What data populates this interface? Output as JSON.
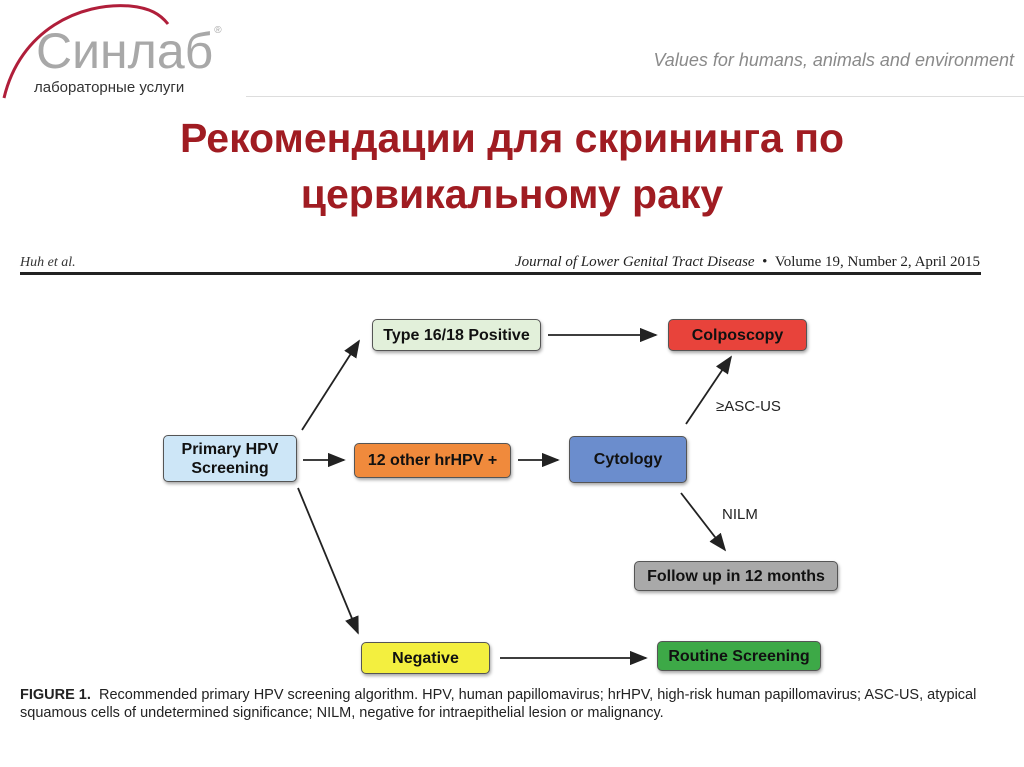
{
  "logo": {
    "name": "Синлаб",
    "registered": "®",
    "subtitle": "лабораторные услуги",
    "arc_color": "#b01e3a"
  },
  "tagline": "Values for humans, animals and environment",
  "title_lines": [
    "Рекомендации для скрининга по",
    "цервикальному раку"
  ],
  "figure_header": {
    "authors": "Huh et al.",
    "journal": "Journal of Lower Genital Tract Disease",
    "separator": "•",
    "volume": "Volume 19, Number 2, April 2015"
  },
  "diagram": {
    "nodes": {
      "primary": {
        "label": "Primary HPV Screening",
        "color": "#cde6f7"
      },
      "type1618": {
        "label": "Type 16/18 Positive",
        "color": "#e2f0da"
      },
      "colposcopy": {
        "label": "Colposcopy",
        "color": "#e8433b"
      },
      "other": {
        "label": "12 other hrHPV +",
        "color": "#f08a3c"
      },
      "cytology": {
        "label": "Cytology",
        "color": "#6b8dcd"
      },
      "followup": {
        "label": "Follow up in 12 months",
        "color": "#a9a9a9"
      },
      "negative": {
        "label": "Negative",
        "color": "#f3ef3f"
      },
      "routine": {
        "label": "Routine Screening",
        "color": "#3da947"
      }
    },
    "edge_labels": {
      "asc_us": "≥ASC-US",
      "nilm": "NILM"
    }
  },
  "caption": {
    "label": "FIGURE 1.",
    "text": "Recommended primary HPV screening algorithm. HPV, human papillomavirus; hrHPV, high-risk human papillomavirus; ASC-US, atypical squamous cells of undetermined significance; NILM, negative for intraepithelial lesion or malignancy."
  }
}
